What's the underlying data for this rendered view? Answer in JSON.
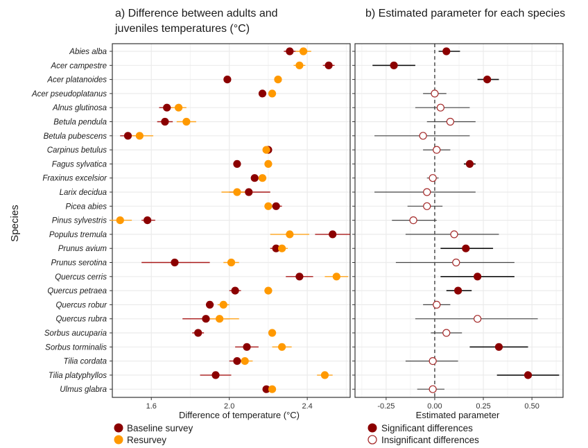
{
  "panel_a_title": [
    "a) Difference between adults and",
    "juveniles temperatures (°C)"
  ],
  "panel_b_title": "b) Estimated parameter for each species",
  "y_axis_label": "Species",
  "colors": {
    "baseline": "#8B0000",
    "resurvey": "#FF9900",
    "significant": "#8B0000",
    "insignificant_stroke": "#A52A2A",
    "panel_border": "#333333",
    "grid": "#EBEBEB"
  },
  "legend_a": [
    {
      "label": "Baseline survey",
      "color": "#8B0000",
      "filled": true
    },
    {
      "label": "Resurvey",
      "color": "#FF9900",
      "filled": true
    }
  ],
  "legend_b": [
    {
      "label": "Significant differences",
      "filled": true
    },
    {
      "label": "Insignificant differences",
      "filled": false
    }
  ],
  "chart_data": [
    {
      "type": "scatter",
      "title": "a) Difference between adults and juveniles temperatures (°C)",
      "xlabel": "Difference of temperature (°C)",
      "ylabel": "Species",
      "xlim": [
        1.4,
        2.62
      ],
      "xticks": [
        1.6,
        2.0,
        2.4
      ],
      "grid": true,
      "legend": "bottom-left",
      "categories": [
        "Abies alba",
        "Acer campestre",
        "Acer platanoides",
        "Acer pseudoplatanus",
        "Alnus glutinosa",
        "Betula pendula",
        "Betula pubescens",
        "Carpinus betulus",
        "Fagus sylvatica",
        "Fraxinus excelsior",
        "Larix decidua",
        "Picea abies",
        "Pinus sylvestris",
        "Populus tremula",
        "Prunus avium",
        "Prunus serotina",
        "Quercus cerris",
        "Quercus petraea",
        "Quercus robur",
        "Quercus rubra",
        "Sorbus aucuparia",
        "Sorbus torminalis",
        "Tilia cordata",
        "Tilia platyphyllos",
        "Ulmus glabra"
      ],
      "series": [
        {
          "name": "Baseline survey",
          "values": [
            2.31,
            2.51,
            1.99,
            2.17,
            1.68,
            1.67,
            1.48,
            2.2,
            2.04,
            2.13,
            2.1,
            2.24,
            1.58,
            2.53,
            2.24,
            1.72,
            2.36,
            2.03,
            1.9,
            1.88,
            1.84,
            2.09,
            2.04,
            1.93,
            2.19
          ],
          "err_low": [
            2.28,
            2.48,
            1.99,
            2.17,
            1.64,
            1.63,
            1.44,
            2.19,
            2.04,
            2.13,
            2.0,
            2.21,
            1.55,
            2.44,
            2.21,
            1.55,
            2.29,
            2.0,
            1.88,
            1.76,
            1.81,
            2.03,
            2.0,
            1.85,
            2.18
          ],
          "err_high": [
            2.34,
            2.54,
            1.99,
            2.17,
            1.71,
            1.71,
            1.52,
            2.21,
            2.04,
            2.13,
            2.21,
            2.27,
            1.62,
            2.62,
            2.27,
            1.9,
            2.43,
            2.06,
            1.92,
            2.0,
            1.87,
            2.15,
            2.08,
            2.01,
            2.2
          ]
        },
        {
          "name": "Resurvey",
          "values": [
            2.38,
            2.36,
            2.25,
            2.22,
            1.74,
            1.78,
            1.54,
            2.19,
            2.2,
            2.17,
            2.04,
            2.2,
            1.44,
            2.31,
            2.27,
            2.01,
            2.55,
            2.2,
            1.97,
            1.95,
            2.22,
            2.27,
            2.08,
            2.49,
            2.22
          ],
          "err_low": [
            2.34,
            2.33,
            2.24,
            2.21,
            1.7,
            1.73,
            1.47,
            2.18,
            2.19,
            2.15,
            1.96,
            2.18,
            1.39,
            2.21,
            2.24,
            1.97,
            2.49,
            2.18,
            1.94,
            1.87,
            2.2,
            2.22,
            2.04,
            2.45,
            2.21
          ],
          "err_high": [
            2.42,
            2.39,
            2.26,
            2.23,
            1.78,
            1.83,
            1.61,
            2.2,
            2.21,
            2.19,
            2.12,
            2.22,
            1.5,
            2.41,
            2.3,
            2.05,
            2.61,
            2.22,
            2.0,
            2.05,
            2.24,
            2.32,
            2.12,
            2.53,
            2.23
          ]
        }
      ]
    },
    {
      "type": "scatter",
      "title": "b) Estimated parameter for each species",
      "xlabel": "Estimated parameter",
      "xlim": [
        -0.41,
        0.66
      ],
      "xticks": [
        -0.25,
        0.0,
        0.25,
        0.5
      ],
      "xtick_labels": [
        "-0.25",
        "0.00",
        "0.25",
        "0.50"
      ],
      "reference_line": 0,
      "grid": true,
      "legend": "bottom-left",
      "categories": [
        "Abies alba",
        "Acer campestre",
        "Acer platanoides",
        "Acer pseudoplatanus",
        "Alnus glutinosa",
        "Betula pendula",
        "Betula pubescens",
        "Carpinus betulus",
        "Fagus sylvatica",
        "Fraxinus excelsior",
        "Larix decidua",
        "Picea abies",
        "Pinus sylvestris",
        "Populus tremula",
        "Prunus avium",
        "Prunus serotina",
        "Quercus cerris",
        "Quercus petraea",
        "Quercus robur",
        "Quercus rubra",
        "Sorbus aucuparia",
        "Sorbus torminalis",
        "Tilia cordata",
        "Tilia platyphyllos",
        "Ulmus glabra"
      ],
      "values": [
        0.06,
        -0.21,
        0.27,
        0.0,
        0.03,
        0.08,
        -0.06,
        0.01,
        0.18,
        -0.01,
        -0.04,
        -0.04,
        -0.11,
        0.1,
        0.16,
        0.11,
        0.22,
        0.12,
        0.01,
        0.22,
        0.06,
        0.33,
        -0.01,
        0.48,
        -0.01
      ],
      "ci_low": [
        0.02,
        -0.32,
        0.22,
        -0.06,
        -0.1,
        -0.04,
        -0.31,
        -0.06,
        0.15,
        -0.04,
        -0.31,
        -0.14,
        -0.22,
        -0.15,
        0.03,
        -0.2,
        0.03,
        0.06,
        -0.06,
        -0.1,
        -0.02,
        0.18,
        -0.15,
        0.32,
        -0.09
      ],
      "ci_high": [
        0.13,
        -0.1,
        0.33,
        0.06,
        0.18,
        0.21,
        0.18,
        0.08,
        0.21,
        0.02,
        0.21,
        0.04,
        0.01,
        0.33,
        0.3,
        0.41,
        0.41,
        0.19,
        0.08,
        0.53,
        0.14,
        0.48,
        0.12,
        0.64,
        0.05
      ],
      "significant": [
        true,
        true,
        true,
        false,
        false,
        false,
        false,
        false,
        true,
        false,
        false,
        false,
        false,
        false,
        true,
        false,
        true,
        true,
        false,
        false,
        false,
        true,
        false,
        true,
        false
      ]
    }
  ]
}
